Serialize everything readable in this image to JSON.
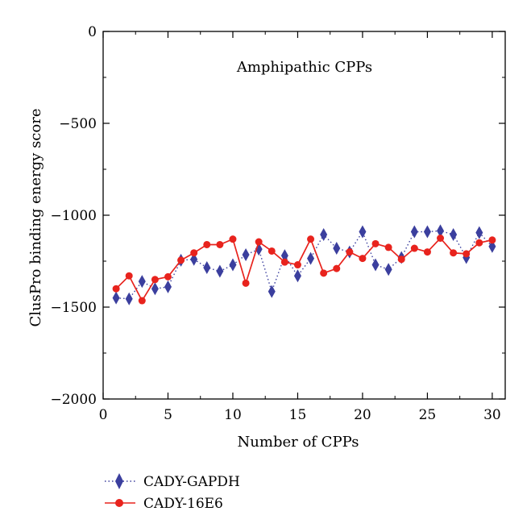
{
  "chart_data": {
    "type": "line",
    "title": "Amphipathic CPPs",
    "xlabel": "Number of CPPs",
    "ylabel": "ClusPro binding energy score",
    "xlim": [
      0,
      31
    ],
    "ylim": [
      -2000,
      0
    ],
    "xticks": [
      0,
      5,
      10,
      15,
      20,
      25,
      30
    ],
    "yticks": [
      0,
      -500,
      -1000,
      -1500,
      -2000
    ],
    "xtick_labels": [
      "0",
      "5",
      "10",
      "15",
      "20",
      "25",
      "30"
    ],
    "ytick_labels": [
      "0",
      "−500",
      "−1000",
      "−1500",
      "−2000"
    ],
    "legend_position": "bottom-left, outside plot",
    "grid": false,
    "x": [
      1,
      2,
      3,
      4,
      5,
      6,
      7,
      8,
      9,
      10,
      11,
      12,
      13,
      14,
      15,
      16,
      17,
      18,
      19,
      20,
      21,
      22,
      23,
      24,
      25,
      26,
      27,
      28,
      29,
      30
    ],
    "series": [
      {
        "name": "CADY-GAPDH",
        "color": "#3b3f9e",
        "line_style": "dotted",
        "marker": "diamond",
        "values": [
          -1450,
          -1455,
          -1360,
          -1400,
          -1390,
          -1245,
          -1240,
          -1285,
          -1305,
          -1270,
          -1215,
          -1185,
          -1415,
          -1220,
          -1330,
          -1235,
          -1105,
          -1180,
          -1200,
          -1090,
          -1270,
          -1295,
          -1230,
          -1090,
          -1090,
          -1085,
          -1105,
          -1230,
          -1095,
          -1170
        ]
      },
      {
        "name": "CADY-16E6",
        "color": "#e8231d",
        "line_style": "solid",
        "marker": "circle",
        "values": [
          -1400,
          -1330,
          -1465,
          -1350,
          -1335,
          -1245,
          -1205,
          -1160,
          -1160,
          -1130,
          -1370,
          -1145,
          -1195,
          -1255,
          -1270,
          -1130,
          -1315,
          -1290,
          -1200,
          -1235,
          -1155,
          -1175,
          -1240,
          -1180,
          -1200,
          -1125,
          -1205,
          -1210,
          -1150,
          -1135
        ]
      }
    ]
  }
}
